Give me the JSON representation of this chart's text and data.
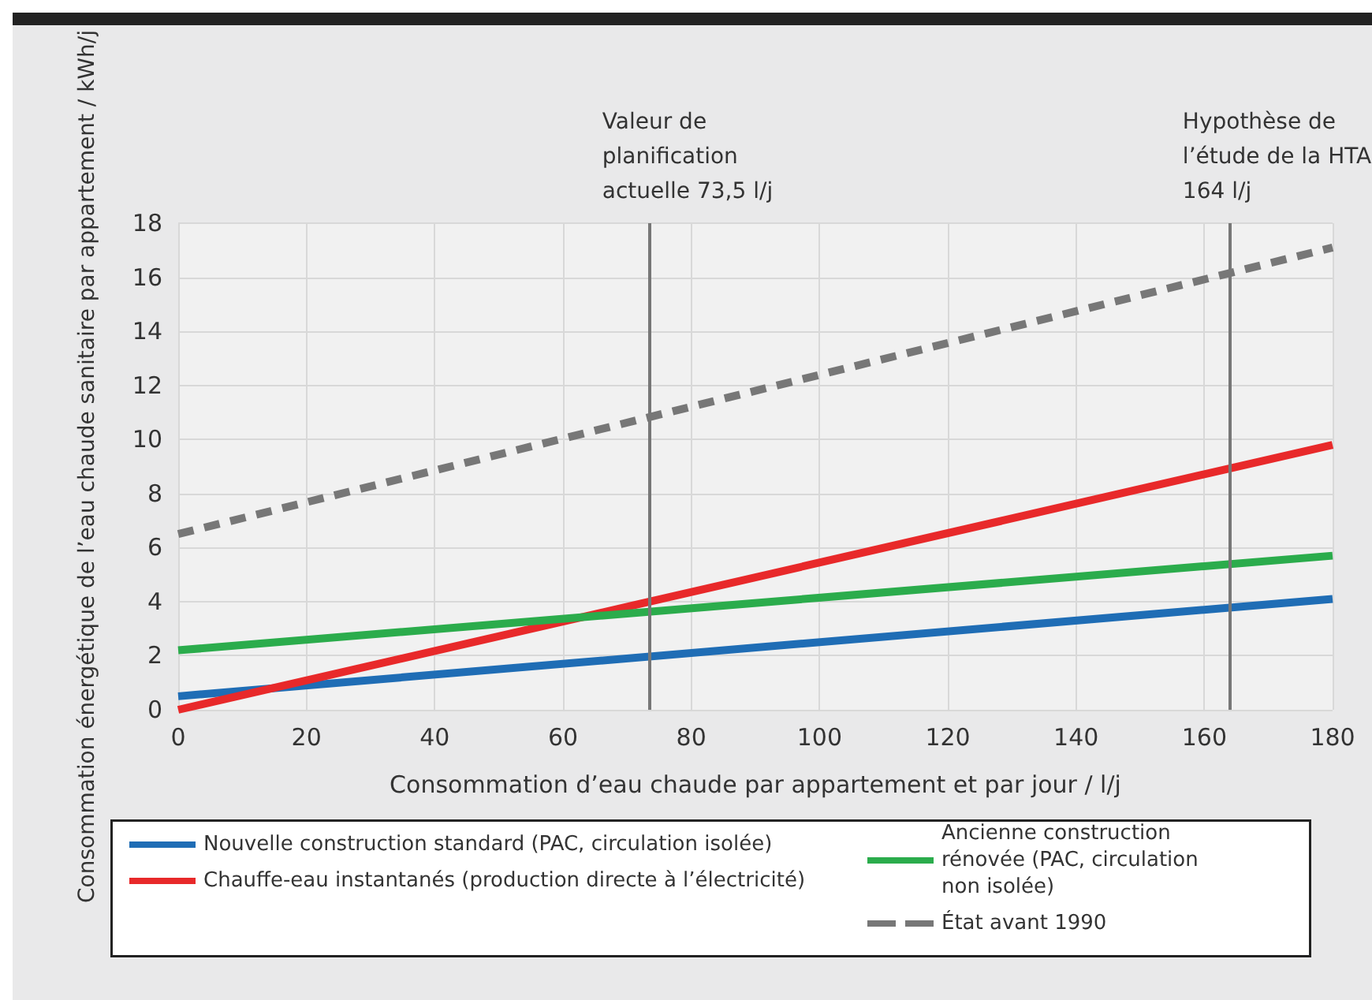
{
  "chart_data": {
    "type": "line",
    "xlabel": "Consommation d’eau chaude par appartement et par jour / l/j",
    "ylabel": "Consommation énergétique de l’eau chaude sanitaire par appartement / kWh/j",
    "x": [
      0,
      180
    ],
    "series": [
      {
        "name": "Nouvelle construction standard (PAC, circulation isolée)",
        "color": "#1f6db5",
        "values": [
          0.5,
          4.1
        ],
        "line_style": "solid"
      },
      {
        "name": "Chauffe-eau instantanés (production directe à l’électricité)",
        "color": "#e8292a",
        "values": [
          0,
          9.8
        ],
        "line_style": "solid"
      },
      {
        "name": "Ancienne construction rénovée (PAC, circulation non isolée)",
        "color": "#2bac4c",
        "values": [
          2.2,
          5.7
        ],
        "line_style": "solid"
      },
      {
        "name": "État avant 1990",
        "color": "#777777",
        "values": [
          6.5,
          17.1
        ],
        "line_style": "dashed"
      }
    ],
    "xlim": [
      0,
      180
    ],
    "xticks": [
      0,
      20,
      40,
      60,
      80,
      100,
      120,
      140,
      160,
      180
    ],
    "ylim": [
      0,
      18
    ],
    "yticks": [
      0,
      2,
      4,
      6,
      8,
      10,
      12,
      14,
      16,
      18
    ],
    "ref_lines": [
      {
        "axis": "x",
        "value": 73.5,
        "label": "Valeur de planification actuelle 73,5 l/j",
        "color": "#777777"
      },
      {
        "axis": "x",
        "value": 164,
        "label": "Hypothèse de l’étude de la HTA 164 l/j",
        "color": "#777777"
      }
    ],
    "grid": true,
    "legend": "bottom",
    "marker": "none"
  }
}
